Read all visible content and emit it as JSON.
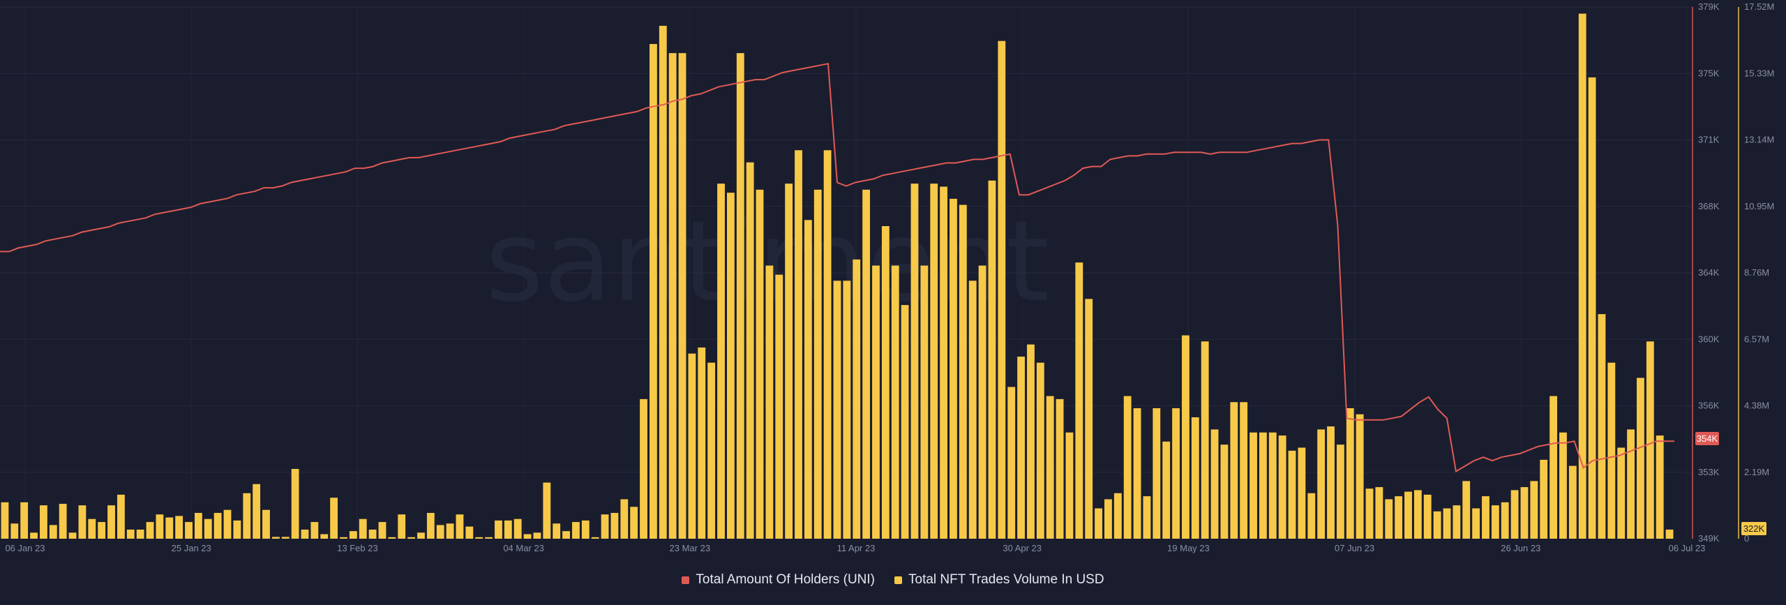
{
  "chart_data": {
    "type": "bar",
    "watermark": "santiment",
    "x_ticks": [
      "06 Jan 23",
      "25 Jan 23",
      "13 Feb 23",
      "04 Mar 23",
      "23 Mar 23",
      "11 Apr 23",
      "30 Apr 23",
      "19 May 23",
      "07 Jun 23",
      "26 Jun 23",
      "06 Jul 23"
    ],
    "x_range": [
      "2023-01-01",
      "2023-07-06"
    ],
    "y_left_ticks": [
      "379K",
      "375K",
      "371K",
      "368K",
      "364K",
      "360K",
      "356K",
      "353K",
      "349K"
    ],
    "y_left_range": [
      349000,
      379000
    ],
    "y_right_ticks": [
      "17.52M",
      "15.33M",
      "13.14M",
      "10.95M",
      "8.76M",
      "6.57M",
      "4.38M",
      "2.19M",
      "0"
    ],
    "y_right_range": [
      0,
      17520000
    ],
    "current_holders_label": "354K",
    "current_volume_label": "322K",
    "series": [
      {
        "name": "Total Amount Of Holders (UNI)",
        "type": "line",
        "axis": "left",
        "color": "#e05a55",
        "values": [
          365200,
          365200,
          365400,
          365500,
          365600,
          365800,
          365900,
          366000,
          366100,
          366300,
          366400,
          366500,
          366600,
          366800,
          366900,
          367000,
          367100,
          367300,
          367400,
          367500,
          367600,
          367700,
          367900,
          368000,
          368100,
          368200,
          368400,
          368500,
          368600,
          368800,
          368800,
          368900,
          369100,
          369200,
          369300,
          369400,
          369500,
          369600,
          369700,
          369900,
          369900,
          370000,
          370200,
          370300,
          370400,
          370500,
          370500,
          370600,
          370700,
          370800,
          370900,
          371000,
          371100,
          371200,
          371300,
          371400,
          371600,
          371700,
          371800,
          371900,
          372000,
          372100,
          372300,
          372400,
          372500,
          372600,
          372700,
          372800,
          372900,
          373000,
          373100,
          373300,
          373400,
          373500,
          373700,
          373800,
          374000,
          374100,
          374300,
          374500,
          374600,
          374700,
          374800,
          374900,
          374900,
          375100,
          375300,
          375400,
          375500,
          375600,
          375700,
          375800,
          369100,
          368900,
          369100,
          369200,
          369300,
          369500,
          369600,
          369700,
          369800,
          369900,
          370000,
          370100,
          370200,
          370200,
          370300,
          370400,
          370400,
          370500,
          370600,
          370700,
          368400,
          368400,
          368600,
          368800,
          369000,
          369200,
          369500,
          369900,
          370000,
          370000,
          370400,
          370500,
          370600,
          370600,
          370700,
          370700,
          370700,
          370800,
          370800,
          370800,
          370800,
          370700,
          370800,
          370800,
          370800,
          370800,
          370900,
          371000,
          371100,
          371200,
          371300,
          371300,
          371400,
          371500,
          371500,
          366700,
          355800,
          355700,
          355700,
          355700,
          355700,
          355800,
          355900,
          356300,
          356700,
          357000,
          356300,
          355800,
          352800,
          353100,
          353400,
          353600,
          353400,
          353600,
          353700,
          353800,
          354000,
          354200,
          354300,
          354400,
          354400,
          354500,
          353000,
          353400,
          353500,
          353600,
          353700,
          353900,
          354100,
          354300,
          354500,
          354500,
          354500
        ]
      },
      {
        "name": "Total NFT Trades Volume In USD",
        "type": "bar",
        "axis": "right",
        "color": "#f7c948",
        "values": [
          1200000,
          500000,
          1200000,
          200000,
          1100000,
          450000,
          1150000,
          200000,
          1100000,
          650000,
          550000,
          1100000,
          1450000,
          300000,
          300000,
          550000,
          800000,
          700000,
          750000,
          550000,
          850000,
          650000,
          850000,
          950000,
          600000,
          1500000,
          1800000,
          950000,
          60000,
          60000,
          2300000,
          300000,
          550000,
          150000,
          1350000,
          50000,
          250000,
          650000,
          300000,
          550000,
          50000,
          800000,
          50000,
          200000,
          850000,
          450000,
          500000,
          800000,
          400000,
          50000,
          50000,
          600000,
          600000,
          650000,
          150000,
          200000,
          1850000,
          500000,
          250000,
          550000,
          600000,
          50000,
          800000,
          850000,
          1300000,
          1050000,
          4600000,
          16300000,
          16900000,
          16000000,
          16000000,
          6100000,
          6300000,
          5800000,
          11700000,
          11400000,
          16000000,
          12400000,
          11500000,
          9000000,
          8700000,
          11700000,
          12800000,
          10500000,
          11500000,
          12800000,
          8500000,
          8500000,
          9200000,
          11500000,
          9000000,
          10300000,
          9000000,
          7700000,
          11700000,
          9000000,
          11700000,
          11600000,
          11200000,
          11000000,
          8500000,
          9000000,
          11800000,
          16400000,
          5000000,
          6000000,
          6400000,
          5800000,
          4700000,
          4600000,
          3500000,
          9100000,
          7900000,
          1000000,
          1300000,
          1500000,
          4700000,
          4300000,
          1400000,
          4300000,
          3200000,
          4300000,
          6700000,
          4000000,
          6500000,
          3600000,
          3100000,
          4500000,
          4500000,
          3500000,
          3500000,
          3500000,
          3400000,
          2900000,
          3000000,
          1500000,
          3600000,
          3700000,
          3100000,
          4300000,
          4100000,
          1650000,
          1700000,
          1300000,
          1400000,
          1550000,
          1600000,
          1450000,
          900000,
          1000000,
          1100000,
          1900000,
          1000000,
          1400000,
          1100000,
          1200000,
          1600000,
          1700000,
          1900000,
          2600000,
          4700000,
          3500000,
          2400000,
          17300000,
          15200000,
          7400000,
          5800000,
          3000000,
          3600000,
          5300000,
          6500000,
          3400000,
          300000
        ]
      }
    ]
  }
}
